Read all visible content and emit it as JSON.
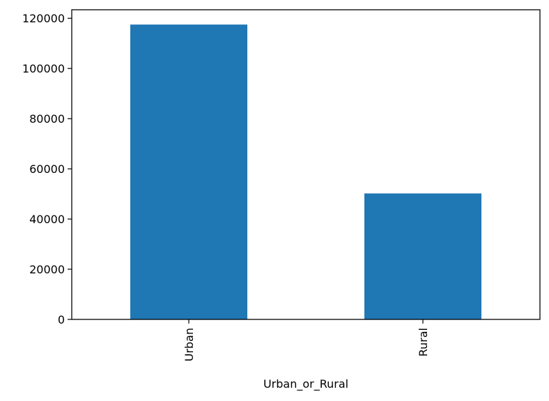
{
  "chart_data": {
    "type": "bar",
    "title": "",
    "xlabel": "Urban_or_Rural",
    "ylabel": "",
    "categories": [
      "Urban",
      "Rural"
    ],
    "values": [
      117500,
      50200
    ],
    "ylim": [
      0,
      123400
    ],
    "yticks": [
      0,
      20000,
      40000,
      60000,
      80000,
      100000,
      120000
    ],
    "ytick_labels": [
      "0",
      "20000",
      "40000",
      "60000",
      "80000",
      "100000",
      "120000"
    ],
    "bar_color": "#1f77b4",
    "grid": false,
    "legend": "none",
    "x_tick_rotation": "vertical"
  }
}
